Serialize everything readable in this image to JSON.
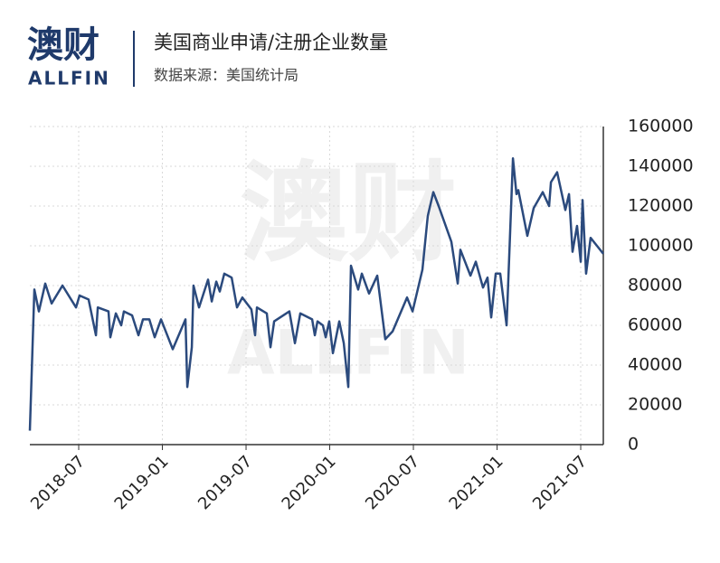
{
  "logo": {
    "cn": "澳财",
    "en": "ALLFIN"
  },
  "watermark": {
    "cn": "澳财",
    "en": "ALLFIN"
  },
  "chart_data": {
    "type": "line",
    "title": "美国商业申请/注册企业数量",
    "subtitle": "数据来源：美国统计局",
    "x": [
      2018.208,
      2018.235,
      2018.262,
      2018.3,
      2018.338,
      2018.403,
      2018.484,
      2018.505,
      2018.559,
      2018.603,
      2018.614,
      2018.678,
      2018.689,
      2018.722,
      2018.754,
      2018.77,
      2018.819,
      2018.857,
      2018.884,
      2018.922,
      2018.954,
      2018.992,
      2019.062,
      2019.138,
      2019.149,
      2019.176,
      2019.186,
      2019.219,
      2019.273,
      2019.295,
      2019.322,
      2019.343,
      2019.37,
      2019.414,
      2019.446,
      2019.478,
      2019.532,
      2019.554,
      2019.565,
      2019.624,
      2019.646,
      2019.668,
      2019.759,
      2019.792,
      2019.824,
      2019.895,
      2019.911,
      2019.927,
      2019.959,
      2019.976,
      2019.997,
      2020.019,
      2020.057,
      2020.084,
      2020.111,
      2020.127,
      2020.17,
      2020.192,
      2020.235,
      2020.284,
      2020.332,
      2020.376,
      2020.462,
      2020.495,
      2020.554,
      2020.586,
      2020.619,
      2020.651,
      2020.727,
      2020.765,
      2020.781,
      2020.841,
      2020.873,
      2020.916,
      2020.943,
      2020.965,
      2020.992,
      2021.019,
      2021.057,
      2021.095,
      2021.116,
      2021.127,
      2021.181,
      2021.219,
      2021.273,
      2021.311,
      2021.322,
      2021.359,
      2021.408,
      2021.43,
      2021.451,
      2021.478,
      2021.5,
      2021.511,
      2021.532,
      2021.559,
      2021.597,
      2021.635
    ],
    "series": [
      {
        "name": "美国商业申请/注册企业数量",
        "color": "#2b4a7d",
        "values": [
          7000,
          78000,
          67000,
          81000,
          71000,
          80000,
          69000,
          75000,
          73000,
          55000,
          69000,
          67000,
          54000,
          66000,
          60000,
          67000,
          65000,
          55000,
          63000,
          63000,
          54000,
          63000,
          48000,
          63000,
          29000,
          49000,
          80000,
          69000,
          83000,
          72000,
          82000,
          77000,
          86000,
          84000,
          69000,
          74000,
          68000,
          55000,
          69000,
          66000,
          49000,
          62000,
          67000,
          51000,
          66000,
          63000,
          55000,
          62000,
          60000,
          54000,
          62000,
          46000,
          62000,
          51000,
          29000,
          90000,
          78000,
          86000,
          76000,
          85000,
          53000,
          57000,
          74000,
          67000,
          88000,
          115000,
          127000,
          120000,
          102000,
          81000,
          98000,
          85000,
          92000,
          79000,
          84000,
          64000,
          86000,
          86000,
          60000,
          144000,
          126000,
          128000,
          105000,
          119000,
          127000,
          120000,
          132000,
          137000,
          118000,
          126000,
          97000,
          110000,
          92000,
          123000,
          86000,
          104000,
          100000,
          96000
        ]
      }
    ],
    "xlim": [
      2018.208,
      2021.635
    ],
    "xticks": [
      {
        "value": 2018.5,
        "label": "2018-07"
      },
      {
        "value": 2019.0,
        "label": "2019-01"
      },
      {
        "value": 2019.5,
        "label": "2019-07"
      },
      {
        "value": 2020.0,
        "label": "2020-01"
      },
      {
        "value": 2020.5,
        "label": "2020-07"
      },
      {
        "value": 2021.0,
        "label": "2021-01"
      },
      {
        "value": 2021.5,
        "label": "2021-07"
      }
    ],
    "ylim": [
      0,
      160000
    ],
    "yticks": [
      0,
      20000,
      40000,
      60000,
      80000,
      100000,
      120000,
      140000,
      160000
    ],
    "grid": true
  }
}
